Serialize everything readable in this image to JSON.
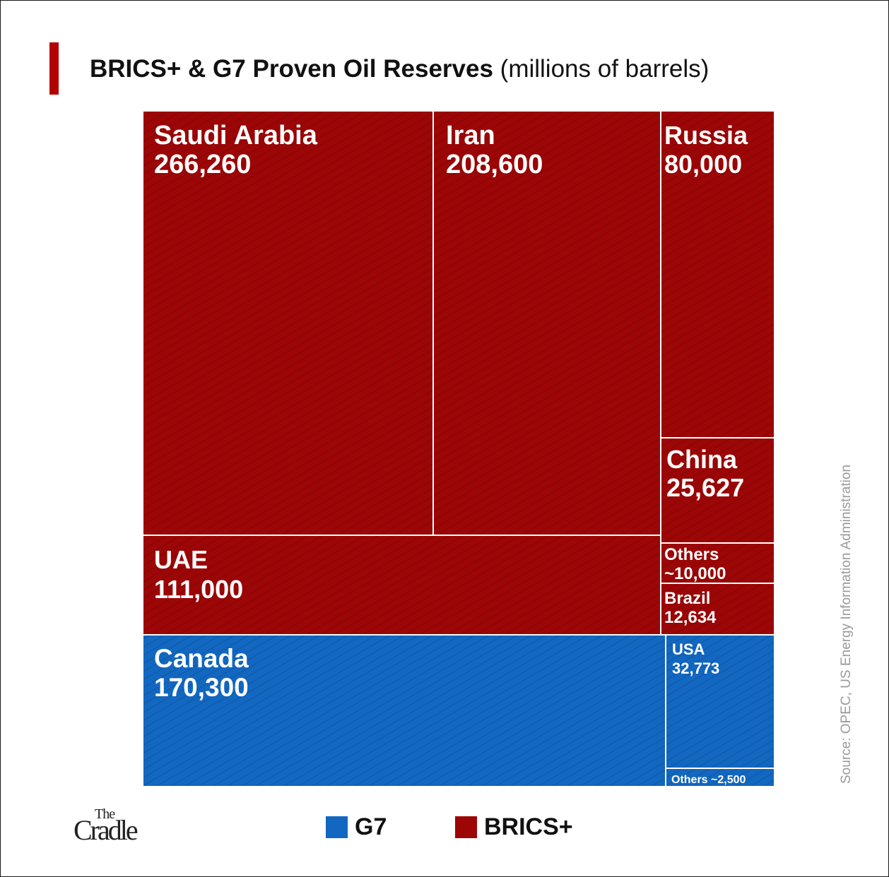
{
  "title": {
    "bold": "BRICS+ & G7 Proven Oil Reserves",
    "light": "(millions of barrels)"
  },
  "source": "Source: OPEC, US Energy Information Administration",
  "logo": {
    "the": "The",
    "name": "Cradle"
  },
  "colors": {
    "G7": "#1267c0",
    "BRICS+": "#9c0606",
    "accent": "#b30000"
  },
  "legend": [
    {
      "label": "G7",
      "color": "#1267c0"
    },
    {
      "label": "BRICS+",
      "color": "#9c0606"
    }
  ],
  "chart_data": {
    "type": "treemap",
    "title": "BRICS+ & G7 Proven Oil Reserves (millions of barrels)",
    "unit": "millions of barrels",
    "items": [
      {
        "name": "Saudi Arabia",
        "value_label": "266,260",
        "value": 266260,
        "group": "BRICS+"
      },
      {
        "name": "Iran",
        "value_label": "208,600",
        "value": 208600,
        "group": "BRICS+"
      },
      {
        "name": "Russia",
        "value_label": "80,000",
        "value": 80000,
        "group": "BRICS+"
      },
      {
        "name": "China",
        "value_label": "25,627",
        "value": 25627,
        "group": "BRICS+"
      },
      {
        "name": "UAE",
        "value_label": "111,000",
        "value": 111000,
        "group": "BRICS+"
      },
      {
        "name": "Others",
        "value_label": "~10,000",
        "value": 10000,
        "group": "BRICS+"
      },
      {
        "name": "Brazil",
        "value_label": "12,634",
        "value": 12634,
        "group": "BRICS+"
      },
      {
        "name": "Canada",
        "value_label": "170,300",
        "value": 170300,
        "group": "G7"
      },
      {
        "name": "USA",
        "value_label": "32,773",
        "value": 32773,
        "group": "G7"
      },
      {
        "name": "Others",
        "value_label": "~2,500",
        "value": 2500,
        "group": "G7",
        "combined_label": "Others ~2,500"
      }
    ]
  }
}
